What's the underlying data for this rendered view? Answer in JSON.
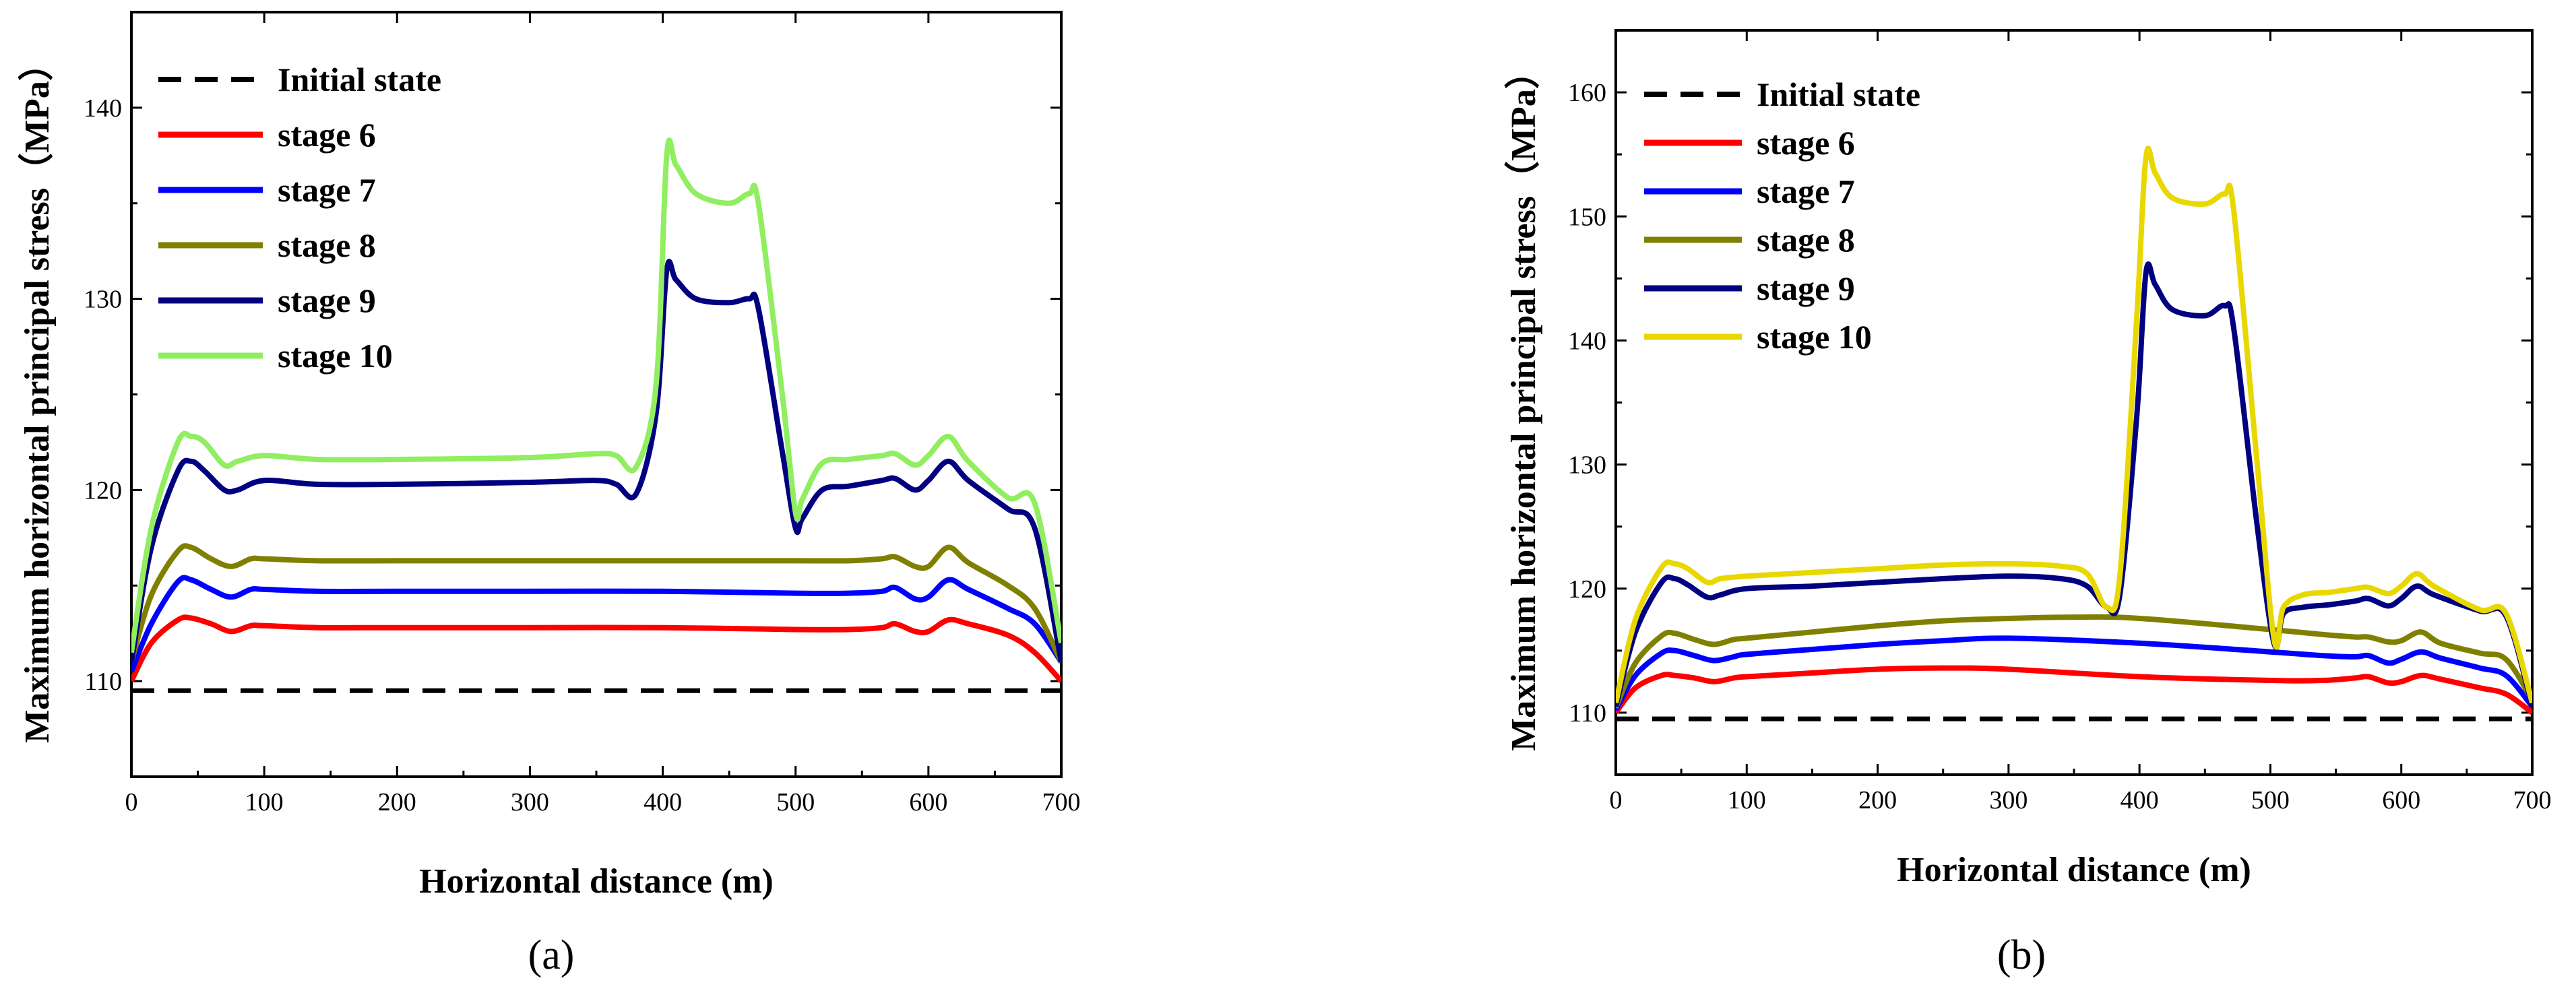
{
  "figure": {
    "panel_labels": [
      "(a)",
      "(b)"
    ]
  },
  "chart_data": [
    {
      "type": "line",
      "panel": "(a)",
      "title": "",
      "xlabel": "Horizontal distance (m)",
      "ylabel": "Maximum horizontal principal stress（MPa）",
      "xlim": [
        0,
        700
      ],
      "ylim": [
        105,
        145
      ],
      "xticks": [
        0,
        100,
        200,
        300,
        400,
        500,
        600,
        700
      ],
      "yticks": [
        110,
        120,
        130,
        140
      ],
      "grid": false,
      "legend_position": "top-left",
      "series": [
        {
          "name": "Initial state",
          "color": "#000000",
          "dash": true,
          "x": [
            0,
            700
          ],
          "y": [
            109.5,
            109.5
          ]
        },
        {
          "name": "stage 6",
          "color": "#ff0000",
          "x": [
            0,
            15,
            35,
            45,
            60,
            75,
            90,
            100,
            140,
            200,
            300,
            400,
            500,
            540,
            565,
            575,
            590,
            600,
            615,
            630,
            660,
            680,
            700
          ],
          "y": [
            110,
            112,
            113.2,
            113.3,
            113,
            112.6,
            112.9,
            112.9,
            112.8,
            112.8,
            112.8,
            112.8,
            112.7,
            112.7,
            112.8,
            113,
            112.6,
            112.6,
            113.2,
            113,
            112.4,
            111.5,
            110
          ]
        },
        {
          "name": "stage 7",
          "color": "#0000ff",
          "x": [
            0,
            15,
            35,
            45,
            60,
            75,
            90,
            100,
            140,
            200,
            300,
            400,
            500,
            540,
            565,
            575,
            590,
            600,
            615,
            630,
            660,
            680,
            700
          ],
          "y": [
            110.5,
            113,
            115.2,
            115.3,
            114.8,
            114.4,
            114.8,
            114.8,
            114.7,
            114.7,
            114.7,
            114.7,
            114.6,
            114.6,
            114.7,
            114.9,
            114.3,
            114.4,
            115.3,
            114.8,
            113.8,
            113,
            111
          ]
        },
        {
          "name": "stage 8",
          "color": "#808000",
          "x": [
            0,
            15,
            35,
            45,
            60,
            75,
            90,
            100,
            140,
            200,
            300,
            400,
            500,
            540,
            565,
            575,
            590,
            600,
            615,
            630,
            660,
            680,
            700
          ],
          "y": [
            111,
            114.5,
            116.8,
            117,
            116.4,
            116,
            116.4,
            116.4,
            116.3,
            116.3,
            116.3,
            116.3,
            116.3,
            116.3,
            116.4,
            116.5,
            116,
            116,
            117,
            116.2,
            115,
            113.8,
            111
          ]
        },
        {
          "name": "stage 9",
          "color": "#000080",
          "x": [
            0,
            15,
            35,
            45,
            55,
            70,
            80,
            100,
            140,
            200,
            300,
            350,
            365,
            380,
            395,
            403,
            410,
            425,
            450,
            465,
            472,
            490,
            500,
            505,
            520,
            540,
            565,
            575,
            590,
            600,
            615,
            630,
            660,
            680,
            700
          ],
          "y": [
            111,
            117,
            121,
            121.5,
            121,
            120,
            120,
            120.5,
            120.3,
            120.3,
            120.4,
            120.5,
            120.3,
            119.8,
            124,
            131.5,
            131,
            130,
            129.8,
            130,
            129.5,
            122,
            118,
            118.5,
            120,
            120.2,
            120.5,
            120.6,
            120,
            120.5,
            121.5,
            120.5,
            119,
            118,
            111
          ]
        },
        {
          "name": "stage 10",
          "color": "#90ee60",
          "x": [
            0,
            15,
            35,
            45,
            55,
            70,
            80,
            100,
            140,
            200,
            300,
            350,
            365,
            380,
            395,
            403,
            410,
            425,
            450,
            465,
            472,
            490,
            500,
            505,
            520,
            540,
            565,
            575,
            590,
            600,
            615,
            630,
            660,
            680,
            700
          ],
          "y": [
            111.5,
            118,
            122.5,
            122.8,
            122.5,
            121.3,
            121.5,
            121.8,
            121.6,
            121.6,
            121.7,
            121.9,
            121.8,
            121.2,
            125.5,
            137.5,
            137,
            135.5,
            135,
            135.5,
            135,
            125,
            118.8,
            119.5,
            121.4,
            121.6,
            121.8,
            121.9,
            121.3,
            121.8,
            122.8,
            121.5,
            119.6,
            119.3,
            112
          ]
        }
      ]
    },
    {
      "type": "line",
      "panel": "(b)",
      "title": "",
      "xlabel": "Horizontal distance (m)",
      "ylabel": "Maximum horizontal principal stress（MPa）",
      "xlim": [
        0,
        700
      ],
      "ylim": [
        105,
        165
      ],
      "xticks": [
        0,
        100,
        200,
        300,
        400,
        500,
        600,
        700
      ],
      "yticks": [
        110,
        120,
        130,
        140,
        150,
        160
      ],
      "grid": false,
      "legend_position": "top-left",
      "series": [
        {
          "name": "Initial state",
          "color": "#000000",
          "dash": true,
          "x": [
            0,
            700
          ],
          "y": [
            109.5,
            109.5
          ]
        },
        {
          "name": "stage 6",
          "color": "#ff0000",
          "x": [
            0,
            15,
            35,
            45,
            60,
            75,
            90,
            100,
            150,
            200,
            250,
            300,
            400,
            500,
            540,
            565,
            575,
            590,
            600,
            615,
            630,
            660,
            680,
            700
          ],
          "y": [
            110,
            112,
            113,
            113,
            112.8,
            112.5,
            112.8,
            112.9,
            113.2,
            113.5,
            113.6,
            113.5,
            112.9,
            112.6,
            112.6,
            112.8,
            112.9,
            112.4,
            112.5,
            113,
            112.7,
            112,
            111.5,
            110
          ]
        },
        {
          "name": "stage 7",
          "color": "#0000ff",
          "x": [
            0,
            15,
            35,
            45,
            60,
            75,
            90,
            100,
            150,
            200,
            250,
            300,
            400,
            500,
            540,
            565,
            575,
            590,
            600,
            615,
            630,
            660,
            680,
            700
          ],
          "y": [
            110.2,
            113,
            114.8,
            115,
            114.6,
            114.2,
            114.5,
            114.7,
            115.1,
            115.5,
            115.8,
            116,
            115.6,
            114.9,
            114.6,
            114.5,
            114.6,
            114,
            114.3,
            114.9,
            114.4,
            113.6,
            113,
            110.5
          ]
        },
        {
          "name": "stage 8",
          "color": "#808000",
          "x": [
            0,
            15,
            35,
            45,
            60,
            75,
            90,
            100,
            150,
            200,
            250,
            300,
            350,
            400,
            500,
            540,
            565,
            575,
            590,
            600,
            615,
            630,
            660,
            680,
            700
          ],
          "y": [
            110.4,
            114,
            116.2,
            116.4,
            115.9,
            115.5,
            115.9,
            116,
            116.5,
            117,
            117.4,
            117.6,
            117.7,
            117.6,
            116.7,
            116.3,
            116.1,
            116.1,
            115.7,
            115.8,
            116.5,
            115.6,
            114.8,
            114.3,
            111
          ]
        },
        {
          "name": "stage 9",
          "color": "#000080",
          "x": [
            0,
            15,
            35,
            45,
            55,
            70,
            80,
            100,
            150,
            200,
            250,
            300,
            340,
            360,
            375,
            385,
            398,
            405,
            412,
            425,
            450,
            465,
            472,
            490,
            503,
            510,
            525,
            545,
            565,
            575,
            590,
            600,
            612,
            625,
            660,
            680,
            700
          ],
          "y": [
            110.5,
            116.5,
            120.5,
            120.8,
            120.3,
            119.3,
            119.5,
            120,
            120.2,
            120.5,
            120.8,
            121,
            120.8,
            120.2,
            118.5,
            119.5,
            134,
            145.5,
            144.5,
            142.5,
            142,
            142.8,
            141,
            125,
            115.5,
            118,
            118.5,
            118.7,
            119,
            119.2,
            118.6,
            119.2,
            120.2,
            119.5,
            118.2,
            117.8,
            110.5
          ]
        },
        {
          "name": "stage 10",
          "color": "#e8d800",
          "x": [
            0,
            15,
            35,
            45,
            55,
            70,
            80,
            100,
            150,
            200,
            250,
            300,
            340,
            360,
            375,
            385,
            398,
            405,
            412,
            425,
            450,
            465,
            472,
            490,
            503,
            510,
            525,
            545,
            565,
            575,
            590,
            600,
            612,
            625,
            660,
            680,
            700
          ],
          "y": [
            110.8,
            117.5,
            121.7,
            122,
            121.6,
            120.5,
            120.8,
            121,
            121.3,
            121.6,
            121.9,
            122,
            121.8,
            121.2,
            118.5,
            121,
            142,
            154.8,
            153.5,
            151.5,
            151,
            151.8,
            150.5,
            130,
            115.8,
            118.5,
            119.5,
            119.7,
            120,
            120.1,
            119.6,
            120.2,
            121.2,
            120.2,
            118.3,
            118,
            110.8
          ]
        }
      ]
    }
  ]
}
